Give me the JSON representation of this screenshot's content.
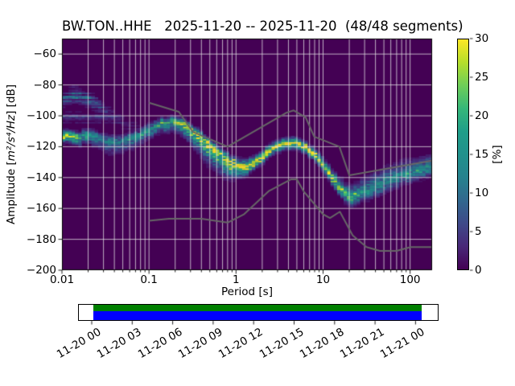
{
  "title": "BW.TON..HHE   2025-11-20 -- 2025-11-20  (48/48 segments)",
  "axes": {
    "xlabel": "Period [s]",
    "ylabel_prefix": "Amplitude [",
    "ylabel_math": "m²/s⁴/Hz",
    "ylabel_suffix": "] [dB]",
    "xtick_labels": [
      "0.01",
      "0.1",
      "1",
      "10",
      "100"
    ],
    "xtick_values": [
      0.01,
      0.1,
      1,
      10,
      100
    ],
    "ytick_labels": [
      "−60",
      "−80",
      "−100",
      "−120",
      "−140",
      "−160",
      "−180",
      "−200"
    ],
    "ytick_values": [
      -60,
      -80,
      -100,
      -120,
      -140,
      -160,
      -180,
      -200
    ]
  },
  "colorbar": {
    "label": "[%]",
    "tick_labels": [
      "0",
      "5",
      "10",
      "15",
      "20",
      "25",
      "30"
    ],
    "tick_values": [
      0,
      5,
      10,
      15,
      20,
      25,
      30
    ],
    "min": 0,
    "max": 30
  },
  "timeline": {
    "tick_labels": [
      "11-20 00",
      "11-20 03",
      "11-20 06",
      "11-20 09",
      "11-20 12",
      "11-20 15",
      "11-20 18",
      "11-20 21",
      "11-21 00"
    ],
    "colors": {
      "frame": "#000000",
      "background": "#ffffff",
      "top_strip": "#008000",
      "bottom_strip": "#0000ff"
    },
    "coverage": {
      "start_frac": 0.042,
      "end_frac": 0.953
    }
  },
  "chart_data": {
    "type": "heatmap",
    "title": "BW.TON..HHE   2025-11-20 -- 2025-11-20  (48/48 segments)",
    "xlabel": "Period [s]",
    "ylabel": "Amplitude [m²/s⁴/Hz] [dB]",
    "xscale": "log",
    "xlim": [
      0.01,
      179
    ],
    "ylim": [
      -200,
      -50
    ],
    "grid": true,
    "legend": false,
    "colormap": "viridis",
    "colormap_stops": [
      "#440154",
      "#482878",
      "#3e4989",
      "#31688e",
      "#26828e",
      "#21918c",
      "#1f9e89",
      "#35b779",
      "#6ece58",
      "#b5de2b",
      "#fde725"
    ],
    "background_color": "#440154",
    "grid_color": "#e6e6e6",
    "clim": [
      0,
      30
    ],
    "colorbar_label": "[%]",
    "db_bin_width": 1,
    "period_step_octaves": 0.125,
    "mode_ridge_log10period_db": [
      [
        -2.0,
        -112.5
      ],
      [
        -1.9,
        -112.5
      ],
      [
        -1.8,
        -114.5
      ],
      [
        -1.7,
        -111.5
      ],
      [
        -1.6,
        -113.5
      ],
      [
        -1.5,
        -116.5
      ],
      [
        -1.4,
        -117.5
      ],
      [
        -1.3,
        -117.0
      ],
      [
        -1.2,
        -114.5
      ],
      [
        -1.1,
        -112.0
      ],
      [
        -1.0,
        -109.0
      ],
      [
        -0.85,
        -105.0
      ],
      [
        -0.7,
        -103.5
      ],
      [
        -0.6,
        -105.5
      ],
      [
        -0.5,
        -109.5
      ],
      [
        -0.4,
        -113.5
      ],
      [
        -0.3,
        -118.5
      ],
      [
        -0.2,
        -123.5
      ],
      [
        -0.1,
        -128.0
      ],
      [
        0.0,
        -131.5
      ],
      [
        0.08,
        -133.5
      ],
      [
        0.18,
        -131.5
      ],
      [
        0.3,
        -126.5
      ],
      [
        0.42,
        -121.5
      ],
      [
        0.52,
        -119.0
      ],
      [
        0.62,
        -118.0
      ],
      [
        0.72,
        -118.5
      ],
      [
        0.8,
        -120.5
      ],
      [
        0.88,
        -124.0
      ],
      [
        0.95,
        -128.5
      ],
      [
        1.02,
        -133.5
      ],
      [
        1.1,
        -140.0
      ],
      [
        1.18,
        -146.0
      ],
      [
        1.26,
        -150.5
      ],
      [
        1.32,
        -152.5
      ],
      [
        1.4,
        -151.5
      ],
      [
        1.5,
        -149.0
      ],
      [
        1.6,
        -146.5
      ],
      [
        1.7,
        -144.0
      ],
      [
        1.8,
        -141.5
      ],
      [
        1.9,
        -139.0
      ],
      [
        2.0,
        -137.0
      ],
      [
        2.1,
        -135.5
      ],
      [
        2.2,
        -134.0
      ],
      [
        2.26,
        -133.5
      ]
    ],
    "spread_log10period_sigmadown_sigmaup_peakpct": [
      [
        -2.0,
        2.2,
        2.0,
        30
      ],
      [
        -1.9,
        2.2,
        2.0,
        29
      ],
      [
        -1.78,
        2.5,
        2.2,
        19
      ],
      [
        -1.6,
        3.5,
        2.2,
        14
      ],
      [
        -1.4,
        4.0,
        2.4,
        13
      ],
      [
        -1.2,
        3.5,
        2.4,
        14
      ],
      [
        -1.0,
        3.0,
        2.2,
        16
      ],
      [
        -0.8,
        3.0,
        1.8,
        20
      ],
      [
        -0.65,
        3.5,
        1.8,
        24
      ],
      [
        -0.5,
        5.0,
        1.8,
        26
      ],
      [
        -0.3,
        6.5,
        1.8,
        27
      ],
      [
        -0.1,
        6.0,
        2.2,
        28
      ],
      [
        0.05,
        3.5,
        2.6,
        29
      ],
      [
        0.2,
        2.2,
        2.2,
        30
      ],
      [
        0.6,
        2.0,
        2.0,
        30
      ],
      [
        0.9,
        2.0,
        2.0,
        30
      ],
      [
        1.1,
        2.4,
        2.6,
        27
      ],
      [
        1.32,
        3.0,
        4.0,
        21
      ],
      [
        1.5,
        3.0,
        4.8,
        15
      ],
      [
        1.7,
        3.4,
        5.2,
        14
      ],
      [
        1.9,
        3.4,
        5.0,
        14
      ],
      [
        2.1,
        3.2,
        4.4,
        15
      ],
      [
        2.26,
        3.0,
        4.0,
        15
      ]
    ],
    "high_freq_cloud": {
      "arc_center_db": [
        [
          -2.0,
          -89.5
        ],
        [
          -1.85,
          -86.0
        ],
        [
          -1.7,
          -89.0
        ],
        [
          -1.55,
          -95.0
        ],
        [
          -1.45,
          -99.0
        ],
        [
          -1.3,
          -104.0
        ],
        [
          -1.15,
          -108.0
        ]
      ],
      "arc_peak_pct": [
        [
          -2.0,
          5.0
        ],
        [
          -1.85,
          9.0
        ],
        [
          -1.7,
          6.5
        ],
        [
          -1.55,
          5.0
        ],
        [
          -1.45,
          3.5
        ],
        [
          -1.3,
          2.5
        ],
        [
          -1.15,
          1.5
        ]
      ],
      "arc_sigma_db": 3.0,
      "band_center_db": -101,
      "band_sigma_db": 2.5,
      "band_peak_pct": 3.5,
      "band_lp_range": [
        -2.0,
        -1.38
      ]
    },
    "noise_models": {
      "color": "#666666",
      "low": [
        [
          0.1,
          -168.0
        ],
        [
          0.17,
          -166.7
        ],
        [
          0.4,
          -166.7
        ],
        [
          0.8,
          -169.2
        ],
        [
          1.24,
          -163.7
        ],
        [
          2.4,
          -148.6
        ],
        [
          4.3,
          -141.1
        ],
        [
          5.0,
          -141.1
        ],
        [
          6.0,
          -149.0
        ],
        [
          10.0,
          -163.8
        ],
        [
          12.0,
          -166.2
        ],
        [
          15.6,
          -162.1
        ],
        [
          21.9,
          -177.5
        ],
        [
          31.6,
          -185.0
        ],
        [
          45.0,
          -187.5
        ],
        [
          70.0,
          -187.5
        ],
        [
          101.0,
          -185.0
        ],
        [
          154.0,
          -185.0
        ],
        [
          179.0,
          -185.0
        ]
      ],
      "high": [
        [
          0.1,
          -91.5
        ],
        [
          0.22,
          -97.4
        ],
        [
          0.32,
          -110.5
        ],
        [
          0.8,
          -120.0
        ],
        [
          3.8,
          -98.0
        ],
        [
          4.6,
          -96.5
        ],
        [
          6.3,
          -101.0
        ],
        [
          7.9,
          -113.5
        ],
        [
          15.4,
          -120.0
        ],
        [
          20.0,
          -138.5
        ],
        [
          179.0,
          -129.0
        ]
      ]
    }
  }
}
